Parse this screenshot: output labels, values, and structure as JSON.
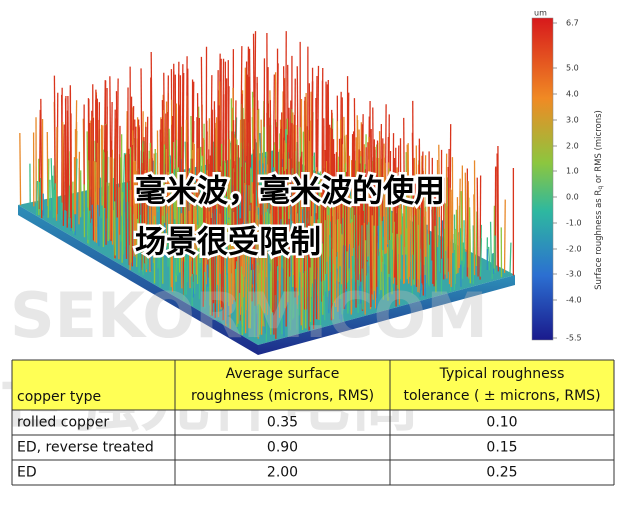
{
  "colorbar": {
    "unit": "um",
    "ticks": [
      "6.7",
      "5.0",
      "4.0",
      "3.0",
      "2.0",
      "1.0",
      "0.0",
      "-1.0",
      "-2.0",
      "-3.0",
      "-4.0",
      "-5.5"
    ],
    "label_parts": [
      "Surface roughness as R",
      "q",
      " or RMS (microns)"
    ]
  },
  "overlay": {
    "lines": [
      "毫米波，毫米波的使用",
      "场景很受限制"
    ]
  },
  "watermark": {
    "latin": "SEKORM.COM",
    "cjk": "世强元件电商"
  },
  "table": {
    "header": [
      "copper type",
      "Average surface roughness (microns, RMS)",
      "Typical roughness tolerance ( ± microns, RMS)"
    ],
    "header_lines": [
      [
        "copper type"
      ],
      [
        "Average surface",
        "roughness (microns, RMS)"
      ],
      [
        "Typical roughness",
        "tolerance ( ± microns, RMS)"
      ]
    ],
    "rows": [
      [
        "rolled copper",
        "0.35",
        "0.10"
      ],
      [
        "ED, reverse treated",
        "0.90",
        "0.15"
      ],
      [
        "ED",
        "2.00",
        "0.25"
      ]
    ]
  }
}
